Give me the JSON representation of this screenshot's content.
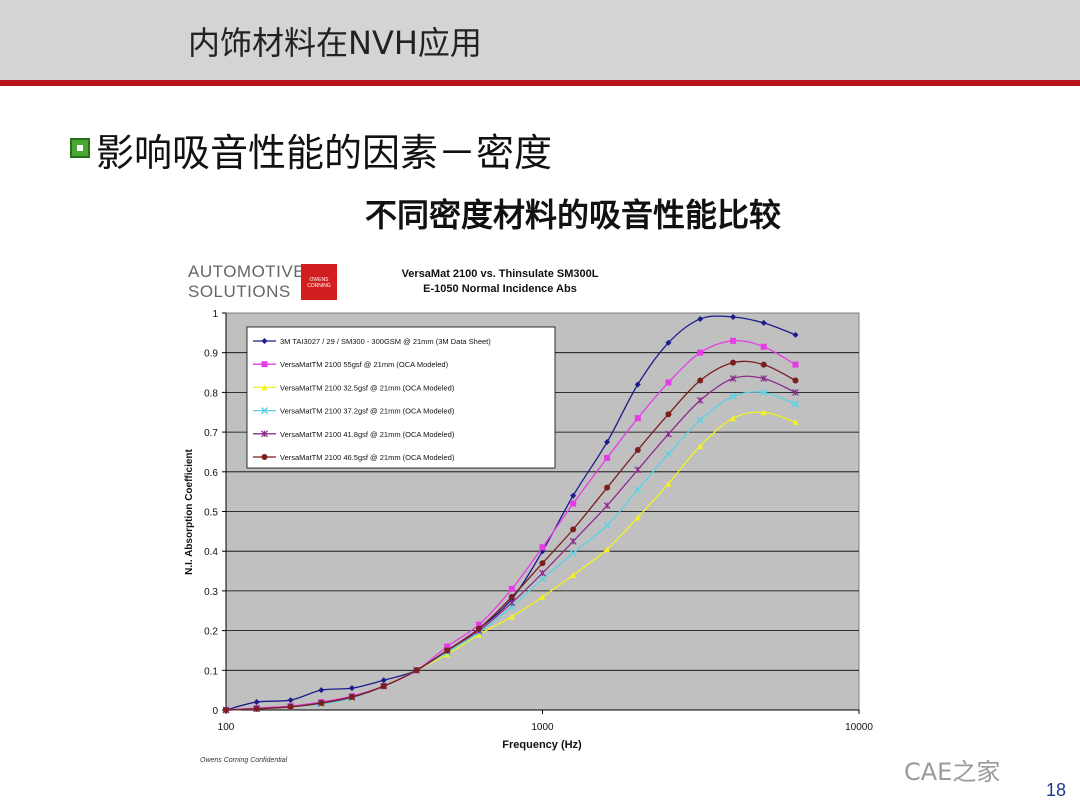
{
  "slide": {
    "title": "内饰材料在NVH应用",
    "heading": "影响吸音性能的因素－密度",
    "subheading": "不同密度材料的吸音性能比较",
    "logo_line1": "AUTOMOTIVE",
    "logo_line2": "SOLUTIONS",
    "logo_badge": "OWENS CORNING",
    "confidential": "Owens Corning Confidential",
    "watermark": "CAE之家",
    "page_number": "18"
  },
  "colors": {
    "title_bar": "#d4d4d4",
    "accent_line": "#b8141e",
    "plot_bg": "#c0c0c0",
    "bullet": "#48a832"
  },
  "chart_data": {
    "type": "line",
    "title": "VersaMat 2100 vs. Thinsulate SM300L",
    "subtitle": "E-1050 Normal Incidence Abs",
    "xlabel": "Frequency (Hz)",
    "ylabel": "N.I. Absorption Coefficient",
    "xscale": "log",
    "xlim": [
      100,
      10000
    ],
    "ylim": [
      0,
      1
    ],
    "xticks": [
      "100",
      "1000",
      "10000"
    ],
    "yticks": [
      "0",
      "0.1",
      "0.2",
      "0.3",
      "0.4",
      "0.5",
      "0.6",
      "0.7",
      "0.8",
      "0.9",
      "1"
    ],
    "grid": "horizontal",
    "legend_position": "top-left",
    "x": [
      100,
      125,
      160,
      200,
      250,
      315,
      400,
      500,
      630,
      800,
      1000,
      1250,
      1600,
      2000,
      2500,
      3150,
      4000,
      5000,
      6300
    ],
    "series": [
      {
        "name": "3M TAI3027 / 29 / SM300 - 300GSM @ 21mm (3M Data Sheet)",
        "color": "#1c1c8c",
        "marker": "diamond",
        "values": [
          0.0,
          0.02,
          0.025,
          0.05,
          0.055,
          0.075,
          0.1,
          0.15,
          0.205,
          0.28,
          0.4,
          0.54,
          0.675,
          0.82,
          0.925,
          0.985,
          0.99,
          0.975,
          0.945
        ]
      },
      {
        "name": "VersaMatTM 2100 55gsf @ 21mm (OCA Modeled)",
        "color": "#e63ce6",
        "marker": "square",
        "values": [
          0.0,
          0.005,
          0.01,
          0.02,
          0.035,
          0.06,
          0.1,
          0.16,
          0.215,
          0.305,
          0.41,
          0.52,
          0.635,
          0.735,
          0.825,
          0.9,
          0.93,
          0.915,
          0.87
        ]
      },
      {
        "name": "VersaMatTM 2100 32.5gsf @ 21mm (OCA Modeled)",
        "color": "#f2f21e",
        "marker": "triangle",
        "values": [
          0.0,
          0.003,
          0.008,
          0.015,
          0.03,
          0.06,
          0.1,
          0.14,
          0.19,
          0.235,
          0.285,
          0.34,
          0.405,
          0.485,
          0.57,
          0.665,
          0.735,
          0.75,
          0.725
        ]
      },
      {
        "name": "VersaMatTM 2100 37.2gsf @ 21mm (OCA Modeled)",
        "color": "#5ad2e6",
        "marker": "x",
        "values": [
          0.0,
          0.003,
          0.008,
          0.015,
          0.03,
          0.06,
          0.1,
          0.145,
          0.195,
          0.26,
          0.33,
          0.395,
          0.465,
          0.555,
          0.645,
          0.73,
          0.79,
          0.8,
          0.77
        ]
      },
      {
        "name": "VersaMatTM 2100 41.8gsf @ 21mm (OCA Modeled)",
        "color": "#8c2c8c",
        "marker": "star",
        "values": [
          0.0,
          0.003,
          0.008,
          0.017,
          0.032,
          0.06,
          0.1,
          0.15,
          0.2,
          0.27,
          0.345,
          0.425,
          0.515,
          0.605,
          0.695,
          0.78,
          0.835,
          0.835,
          0.8
        ]
      },
      {
        "name": "VersaMatTM 2100 46.5gsf @ 21mm (OCA Modeled)",
        "color": "#7a1e1e",
        "marker": "circle",
        "values": [
          0.0,
          0.003,
          0.008,
          0.018,
          0.033,
          0.06,
          0.1,
          0.15,
          0.205,
          0.285,
          0.37,
          0.455,
          0.56,
          0.655,
          0.745,
          0.83,
          0.875,
          0.87,
          0.83
        ]
      }
    ]
  }
}
